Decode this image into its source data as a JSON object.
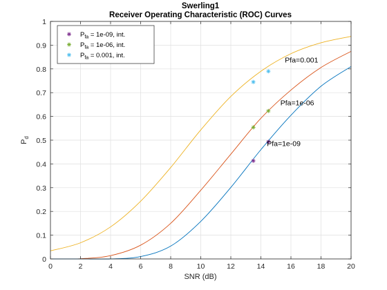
{
  "chart_data": {
    "type": "line",
    "title": "Swerling1",
    "subtitle": "Receiver Operating Characteristic (ROC) Curves",
    "xlabel": "SNR (dB)",
    "ylabel_main": "P",
    "ylabel_sub": "d",
    "xlim": [
      0,
      20
    ],
    "ylim": [
      0,
      1
    ],
    "xticks": [
      0,
      2,
      4,
      6,
      8,
      10,
      12,
      14,
      16,
      18,
      20
    ],
    "yticks": [
      0,
      0.1,
      0.2,
      0.3,
      0.4,
      0.5,
      0.6,
      0.7,
      0.8,
      0.9,
      1
    ],
    "grid": true,
    "legend_position": "top-left",
    "series": [
      {
        "label_text": "Pfa=0.001",
        "color": "#EDB120",
        "x": [
          0,
          2,
          4,
          6,
          8,
          10,
          12,
          14,
          16,
          18,
          20
        ],
        "y": [
          0.034,
          0.068,
          0.135,
          0.243,
          0.385,
          0.543,
          0.684,
          0.79,
          0.864,
          0.91,
          0.937
        ]
      },
      {
        "label_text": "Pfa=1e-06",
        "color": "#D95319",
        "x": [
          0,
          2,
          4,
          6,
          8,
          10,
          12,
          14,
          16,
          18,
          20
        ],
        "y": [
          0.0,
          0.001,
          0.014,
          0.058,
          0.15,
          0.289,
          0.441,
          0.592,
          0.711,
          0.806,
          0.874
        ]
      },
      {
        "label_text": "Pfa=1e-09",
        "color": "#0072BD",
        "x": [
          0,
          2,
          4,
          6,
          8,
          10,
          12,
          14,
          16,
          18,
          20
        ],
        "y": [
          0.0,
          0.0,
          0.0,
          0.01,
          0.054,
          0.158,
          0.301,
          0.46,
          0.605,
          0.727,
          0.81
        ]
      }
    ],
    "markers": [
      {
        "legend": "P_fa = 1e-09, int.",
        "legend_main": "P",
        "legend_sub": "fa",
        "legend_rest": " = 1e-09, int.",
        "color": "#7E2F8E",
        "points": [
          {
            "x": 13.5,
            "y": 0.413
          },
          {
            "x": 14.5,
            "y": 0.493
          }
        ]
      },
      {
        "legend": "P_fa = 1e-06, int.",
        "legend_main": "P",
        "legend_sub": "fa",
        "legend_rest": " = 1e-06, int.",
        "color": "#77AC30",
        "points": [
          {
            "x": 13.5,
            "y": 0.554
          },
          {
            "x": 14.5,
            "y": 0.623
          }
        ]
      },
      {
        "legend": "P_fa = 0.001, int.",
        "legend_main": "P",
        "legend_sub": "fa",
        "legend_rest": " = 0.001, int.",
        "color": "#4DBEEE",
        "points": [
          {
            "x": 13.5,
            "y": 0.745
          },
          {
            "x": 14.5,
            "y": 0.79
          }
        ]
      }
    ],
    "annotations": [
      {
        "text": "Pfa=0.001",
        "x": 15.6,
        "y": 0.838
      },
      {
        "text": "Pfa=1e-06",
        "x": 15.3,
        "y": 0.658
      },
      {
        "text": "Pfa=1e-09",
        "x": 14.4,
        "y": 0.487
      }
    ]
  }
}
